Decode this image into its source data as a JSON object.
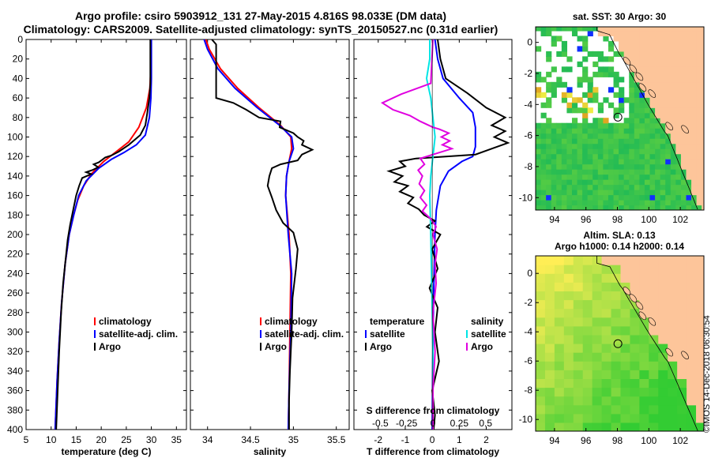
{
  "title_line1": "Argo profile: csiro 5903912_131 27-May-2015 4.816S 98.033E (DM data)",
  "title_line2": "Climatology: CARS2009. Satellite-adjusted climatology: synTS_20150527.nc (0.31d earlier)",
  "stamp": "©IMOS 14-Dec-2018 06:30:54",
  "colors": {
    "climatology": "#ff0000",
    "satellite": "#0000ff",
    "argo": "#000000",
    "s_satellite": "#00e5e5",
    "s_argo": "#e000e0",
    "land": "#fdc59a",
    "ocean_low": "#33cc33",
    "ocean_high": "#ffee55"
  },
  "chart_data": [
    {
      "id": "temperature",
      "type": "line",
      "xlabel": "temperature (deg C)",
      "ylabel": "",
      "xlim": [
        5,
        37
      ],
      "ylim": [
        400,
        0
      ],
      "xticks": [
        5,
        10,
        15,
        20,
        25,
        30,
        35
      ],
      "yticks": [
        0,
        20,
        40,
        60,
        80,
        100,
        120,
        140,
        160,
        180,
        200,
        220,
        240,
        260,
        280,
        300,
        320,
        340,
        360,
        380,
        400
      ],
      "legend": [
        "climatology",
        "satellite-adj. clim.",
        "Argo"
      ],
      "series": [
        {
          "name": "climatology",
          "color": "#ff0000",
          "points": [
            [
              29.9,
              0
            ],
            [
              29.9,
              30
            ],
            [
              29.7,
              50
            ],
            [
              29.0,
              70
            ],
            [
              27.5,
              90
            ],
            [
              25.5,
              105
            ],
            [
              23,
              115
            ],
            [
              20.5,
              125
            ],
            [
              18,
              138
            ],
            [
              16.5,
              150
            ],
            [
              15.3,
              165
            ],
            [
              14.5,
              180
            ],
            [
              13.6,
              200
            ],
            [
              12.8,
              230
            ],
            [
              12.1,
              270
            ],
            [
              11.6,
              310
            ],
            [
              11.2,
              350
            ],
            [
              10.8,
              400
            ]
          ]
        },
        {
          "name": "satellite-adj. clim.",
          "color": "#0000ff",
          "points": [
            [
              30.0,
              0
            ],
            [
              30.0,
              40
            ],
            [
              29.9,
              60
            ],
            [
              29.6,
              80
            ],
            [
              28.8,
              98
            ],
            [
              27,
              108
            ],
            [
              24.5,
              116
            ],
            [
              22,
              123
            ],
            [
              19.5,
              132
            ],
            [
              17,
              145
            ],
            [
              15.5,
              160
            ],
            [
              14.5,
              180
            ],
            [
              13.6,
              200
            ],
            [
              12.8,
              230
            ],
            [
              12.1,
              270
            ],
            [
              11.6,
              310
            ],
            [
              11.2,
              350
            ],
            [
              10.8,
              400
            ]
          ]
        },
        {
          "name": "Argo",
          "color": "#000000",
          "points": [
            [
              29.8,
              0
            ],
            [
              29.8,
              45
            ],
            [
              29.6,
              60
            ],
            [
              29.2,
              75
            ],
            [
              28.8,
              88
            ],
            [
              27.8,
              98
            ],
            [
              25.5,
              108
            ],
            [
              23.5,
              115
            ],
            [
              22,
              119
            ],
            [
              20.8,
              121
            ],
            [
              19.5,
              126
            ],
            [
              18.5,
              128
            ],
            [
              19.4,
              131
            ],
            [
              18.2,
              134
            ],
            [
              17,
              136
            ],
            [
              18,
              138
            ],
            [
              16.2,
              142
            ],
            [
              15.6,
              150
            ],
            [
              15.0,
              160
            ],
            [
              14.4,
              175
            ],
            [
              13.8,
              190
            ],
            [
              13.3,
              205
            ],
            [
              12.9,
              225
            ],
            [
              12.4,
              250
            ],
            [
              12.0,
              280
            ],
            [
              11.6,
              320
            ],
            [
              11.3,
              360
            ],
            [
              11.0,
              400
            ]
          ]
        }
      ]
    },
    {
      "id": "salinity",
      "type": "line",
      "xlabel": "salinity",
      "ylabel": "",
      "xlim": [
        33.8,
        35.65
      ],
      "ylim": [
        400,
        0
      ],
      "xticks": [
        34,
        34.5,
        35,
        35.5
      ],
      "legend": [
        "climatology",
        "satellite-adj. clim.",
        "Argo"
      ],
      "series": [
        {
          "name": "climatology",
          "color": "#ff0000",
          "points": [
            [
              33.98,
              0
            ],
            [
              34.02,
              10
            ],
            [
              34.15,
              30
            ],
            [
              34.35,
              50
            ],
            [
              34.6,
              70
            ],
            [
              34.85,
              88
            ],
            [
              34.97,
              100
            ],
            [
              34.98,
              112
            ],
            [
              34.95,
              125
            ],
            [
              34.92,
              140
            ],
            [
              34.91,
              160
            ],
            [
              34.95,
              200
            ],
            [
              34.97,
              240
            ],
            [
              34.96,
              300
            ],
            [
              34.95,
              360
            ],
            [
              34.94,
              400
            ]
          ]
        },
        {
          "name": "satellite-adj. clim.",
          "color": "#0000ff",
          "points": [
            [
              33.96,
              0
            ],
            [
              34.0,
              10
            ],
            [
              34.12,
              30
            ],
            [
              34.32,
              50
            ],
            [
              34.58,
              70
            ],
            [
              34.84,
              88
            ],
            [
              34.98,
              100
            ],
            [
              35.0,
              112
            ],
            [
              34.95,
              125
            ],
            [
              34.92,
              140
            ],
            [
              34.91,
              160
            ],
            [
              34.94,
              200
            ],
            [
              34.98,
              240
            ],
            [
              34.97,
              300
            ],
            [
              34.95,
              360
            ],
            [
              34.94,
              400
            ]
          ]
        },
        {
          "name": "Argo",
          "color": "#000000",
          "points": [
            [
              34.05,
              0
            ],
            [
              34.1,
              5
            ],
            [
              34.1,
              60
            ],
            [
              34.3,
              65
            ],
            [
              34.45,
              72
            ],
            [
              34.6,
              80
            ],
            [
              34.85,
              84
            ],
            [
              34.84,
              90
            ],
            [
              35.0,
              96
            ],
            [
              35.05,
              100
            ],
            [
              35.12,
              104
            ],
            [
              35.1,
              108
            ],
            [
              35.22,
              113
            ],
            [
              35.1,
              118
            ],
            [
              35.05,
              124
            ],
            [
              34.85,
              128
            ],
            [
              34.75,
              132
            ],
            [
              34.72,
              140
            ],
            [
              34.7,
              150
            ],
            [
              34.75,
              162
            ],
            [
              34.8,
              175
            ],
            [
              34.88,
              188
            ],
            [
              35.0,
              198
            ],
            [
              35.05,
              215
            ],
            [
              35.03,
              235
            ],
            [
              34.99,
              265
            ],
            [
              34.98,
              300
            ],
            [
              34.96,
              340
            ],
            [
              34.95,
              370
            ],
            [
              34.95,
              400
            ]
          ]
        }
      ]
    },
    {
      "id": "differences",
      "type": "line",
      "xlabel": "T difference from climatology",
      "top_label": "S difference from climatology",
      "xlim": [
        -2.9,
        2.95
      ],
      "ylim": [
        400,
        0
      ],
      "xticks_bottom": [
        -2,
        -1,
        0,
        1,
        2
      ],
      "xticks_top": [
        -0.5,
        -0.25,
        0,
        0.25,
        0.5
      ],
      "legend_temperature": {
        "heading": "temperature",
        "entries": [
          "satellite",
          "Argo"
        ]
      },
      "legend_salinity": {
        "heading": "salinity",
        "entries": [
          "satellite",
          "Argo"
        ]
      },
      "series": [
        {
          "name": "T satellite",
          "color": "#0000ff",
          "points": [
            [
              0.1,
              0
            ],
            [
              0.2,
              20
            ],
            [
              0.4,
              40
            ],
            [
              1.0,
              60
            ],
            [
              1.5,
              75
            ],
            [
              1.6,
              90
            ],
            [
              1.6,
              110
            ],
            [
              1.5,
              120
            ],
            [
              1.1,
              125
            ],
            [
              0.6,
              135
            ],
            [
              0.3,
              150
            ],
            [
              0.15,
              175
            ],
            [
              0.1,
              200
            ],
            [
              0.05,
              260
            ],
            [
              0.02,
              330
            ],
            [
              0.0,
              400
            ]
          ]
        },
        {
          "name": "T Argo",
          "color": "#000000",
          "points": [
            [
              0.2,
              0
            ],
            [
              0.3,
              20
            ],
            [
              0.5,
              40
            ],
            [
              1.3,
              55
            ],
            [
              2.0,
              70
            ],
            [
              2.7,
              80
            ],
            [
              2.2,
              88
            ],
            [
              2.7,
              94
            ],
            [
              2.3,
              100
            ],
            [
              2.8,
              106
            ],
            [
              2.2,
              112
            ],
            [
              1.6,
              118
            ],
            [
              0.5,
              120
            ],
            [
              -0.6,
              122
            ],
            [
              -1.2,
              125
            ],
            [
              -1.0,
              130
            ],
            [
              -1.6,
              135
            ],
            [
              -1.1,
              140
            ],
            [
              -1.4,
              146
            ],
            [
              -0.9,
              150
            ],
            [
              -1.2,
              156
            ],
            [
              -0.7,
              162
            ],
            [
              -0.9,
              168
            ],
            [
              -0.5,
              174
            ],
            [
              -0.3,
              180
            ],
            [
              0.1,
              186
            ],
            [
              -0.2,
              192
            ],
            [
              0.3,
              200
            ],
            [
              0.0,
              215
            ],
            [
              0.2,
              235
            ],
            [
              -0.1,
              255
            ],
            [
              0.2,
              275
            ],
            [
              0.1,
              300
            ],
            [
              0.25,
              330
            ],
            [
              0.0,
              360
            ],
            [
              0.1,
              385
            ],
            [
              0.05,
              400
            ]
          ]
        },
        {
          "name": "S satellite",
          "color": "#00e5e5",
          "points": [
            [
              -0.03,
              0
            ],
            [
              -0.03,
              20
            ],
            [
              -0.06,
              40
            ],
            [
              -0.02,
              60
            ],
            [
              0.0,
              80
            ],
            [
              0.02,
              100
            ],
            [
              0.0,
              120
            ],
            [
              -0.02,
              140
            ],
            [
              -0.03,
              160
            ],
            [
              -0.02,
              200
            ],
            [
              -0.01,
              260
            ],
            [
              0.0,
              320
            ],
            [
              0.0,
              400
            ]
          ]
        },
        {
          "name": "S Argo",
          "color": "#e000e0",
          "points": [
            [
              0.0,
              0
            ],
            [
              -0.02,
              45
            ],
            [
              -0.3,
              56
            ],
            [
              -0.48,
              65
            ],
            [
              -0.38,
              72
            ],
            [
              -0.22,
              78
            ],
            [
              -0.12,
              84
            ],
            [
              0.0,
              90
            ],
            [
              0.06,
              92
            ],
            [
              0.15,
              96
            ],
            [
              0.08,
              100
            ],
            [
              0.16,
              104
            ],
            [
              0.09,
              108
            ],
            [
              0.18,
              112
            ],
            [
              0.0,
              118
            ],
            [
              -0.12,
              122
            ],
            [
              -0.08,
              128
            ],
            [
              -0.14,
              134
            ],
            [
              -0.1,
              140
            ],
            [
              -0.13,
              148
            ],
            [
              -0.08,
              155
            ],
            [
              -0.12,
              162
            ],
            [
              -0.06,
              170
            ],
            [
              -0.1,
              176
            ],
            [
              -0.02,
              184
            ],
            [
              0.03,
              192
            ],
            [
              0.0,
              200
            ],
            [
              0.04,
              215
            ],
            [
              0.02,
              230
            ],
            [
              0.03,
              250
            ],
            [
              0.0,
              280
            ],
            [
              0.02,
              320
            ],
            [
              0.0,
              360
            ],
            [
              0.0,
              400
            ]
          ]
        }
      ]
    },
    {
      "id": "sst_map",
      "type": "heatmap",
      "title": "sat. SST: 30 Argo: 30",
      "xlim": [
        92.8,
        103.5
      ],
      "ylim": [
        -10.8,
        1.0
      ],
      "xticks": [
        94,
        96,
        98,
        100,
        102
      ],
      "yticks": [
        0,
        -2,
        -4,
        -6,
        -8,
        -10
      ],
      "argo_position": [
        98.033,
        -4.816
      ]
    },
    {
      "id": "sla_map",
      "type": "heatmap",
      "title": "Altim. SLA: 0.13",
      "subtitle": "Argo h1000: 0.14 h2000: 0.14",
      "xlim": [
        92.8,
        103.5
      ],
      "ylim": [
        -10.8,
        1.2
      ],
      "xticks": [
        94,
        96,
        98,
        100,
        102
      ],
      "yticks": [
        0,
        -2,
        -4,
        -6,
        -8,
        -10
      ],
      "argo_position": [
        98.033,
        -4.816
      ]
    }
  ]
}
